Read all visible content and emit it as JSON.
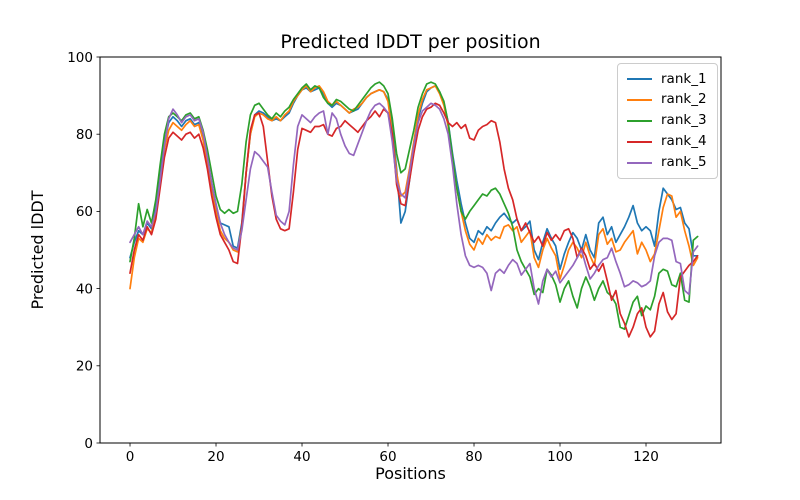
{
  "figure": {
    "background": "#ffffff",
    "axes_color": "#000000",
    "legend_border_color": "#cccccc"
  },
  "chart_data": {
    "type": "line",
    "title": "Predicted lDDT per position",
    "xlabel": "Positions",
    "ylabel": "Predicted lDDT",
    "xlim": [
      -6.98,
      137.44
    ],
    "ylim": [
      0,
      100
    ],
    "xticks": [
      0,
      20,
      40,
      60,
      80,
      100,
      120
    ],
    "yticks": [
      0,
      20,
      40,
      60,
      80,
      100
    ],
    "grid": false,
    "legend_position": "upper right",
    "x_start": 0,
    "x_step": 1,
    "series": [
      {
        "name": "rank_1",
        "color": "#1f77b4",
        "values": [
          48,
          52,
          55,
          54,
          57,
          55.5,
          61,
          70,
          78,
          83,
          84.5,
          83.5,
          82,
          83.5,
          84,
          82.5,
          83,
          79,
          73,
          66,
          61,
          57,
          56.5,
          56,
          51,
          50.5,
          57,
          70,
          80,
          85,
          86,
          85.5,
          84.5,
          83.5,
          84,
          83.5,
          84.5,
          85.5,
          88,
          90,
          91.5,
          92,
          91,
          91.5,
          92,
          90.5,
          88,
          87,
          88,
          87.5,
          86.5,
          85.5,
          86,
          86.5,
          88,
          89.5,
          90.5,
          91,
          91.5,
          91,
          89,
          82,
          71,
          57,
          60,
          68,
          77,
          84,
          88,
          91,
          92,
          92.5,
          91,
          88,
          83,
          75,
          68,
          62,
          57,
          53,
          52,
          55,
          54,
          56,
          55,
          57,
          58.5,
          59.5,
          58,
          57,
          58,
          55,
          56,
          57.5,
          50,
          47.5,
          52,
          55.5,
          53,
          51,
          45,
          49,
          52,
          54.5,
          53,
          50,
          54,
          50,
          48,
          57,
          58.5,
          54,
          56,
          52,
          54,
          56,
          58.5,
          61.5,
          57,
          55,
          56,
          55,
          51,
          60,
          66,
          64.5,
          63,
          60.5,
          61,
          57,
          55.5,
          48.5,
          48.5
        ]
      },
      {
        "name": "rank_2",
        "color": "#ff7f0e",
        "values": [
          40,
          48,
          53,
          52,
          55.5,
          54.5,
          59,
          68,
          76,
          81,
          83,
          82,
          81,
          82.5,
          83.5,
          82,
          82.5,
          78.5,
          72,
          65,
          60,
          55,
          53,
          52,
          50,
          49.5,
          56,
          70,
          80,
          84.5,
          85.5,
          85,
          84,
          83.5,
          84.5,
          83.5,
          85,
          86,
          88.5,
          90,
          91.5,
          92.5,
          91,
          92,
          92.5,
          91,
          88.5,
          87.5,
          88.5,
          87.5,
          86.5,
          85.5,
          86.5,
          87,
          88,
          89.5,
          90.5,
          91,
          91.5,
          91,
          88.5,
          80,
          70,
          64,
          65,
          71,
          78,
          85,
          89,
          91.5,
          92,
          92.5,
          90.5,
          87.5,
          82,
          74,
          66,
          60,
          55,
          51.5,
          50,
          53,
          51.5,
          54,
          52.5,
          53.5,
          53,
          56,
          56.5,
          55,
          56,
          52,
          53.5,
          55,
          48,
          45.5,
          50,
          53,
          50.5,
          48.5,
          42.5,
          46,
          50,
          52,
          50.5,
          48,
          52,
          48.5,
          46,
          54,
          55.5,
          51.5,
          53,
          49.5,
          50,
          52,
          53.5,
          55,
          49,
          52,
          50,
          47,
          49,
          55,
          61,
          64.5,
          64,
          58.5,
          60,
          55,
          51,
          46,
          48
        ]
      },
      {
        "name": "rank_3",
        "color": "#2ca02c",
        "values": [
          47,
          53,
          62,
          56,
          60.5,
          57,
          63,
          72,
          80,
          84.5,
          85.5,
          84.5,
          83.5,
          85,
          85.5,
          84,
          84.5,
          81,
          76,
          70,
          64,
          60.5,
          59.5,
          60.5,
          59.5,
          60,
          67,
          78,
          85,
          87.5,
          88,
          86.5,
          85,
          84,
          85.5,
          84.5,
          86,
          87,
          89,
          90.5,
          92,
          93,
          91.5,
          92.5,
          92,
          89.5,
          88,
          87.5,
          89,
          88.5,
          87.5,
          86.5,
          86,
          87.5,
          89,
          90.5,
          92,
          93,
          93.5,
          92.5,
          90.5,
          84,
          75,
          70,
          71,
          76,
          81,
          87,
          90.5,
          93,
          93.5,
          93,
          91,
          88.5,
          83,
          74,
          66,
          60,
          58,
          60,
          61.5,
          63,
          64.5,
          64,
          65.5,
          66,
          64.5,
          62,
          59.5,
          56,
          50,
          47,
          45,
          43,
          38.5,
          40,
          39,
          45,
          43.5,
          41,
          36.5,
          40,
          42,
          38,
          35,
          40,
          43,
          40.5,
          37,
          40,
          42,
          39,
          38,
          36,
          30,
          29.5,
          33,
          36.5,
          38,
          33,
          35.5,
          34.5,
          38,
          44,
          45,
          44.5,
          41,
          40.5,
          44,
          37,
          36.5,
          52.5,
          53.5
        ]
      },
      {
        "name": "rank_4",
        "color": "#d62728",
        "values": [
          44,
          50,
          54,
          52.5,
          56,
          54,
          58,
          66,
          74,
          79,
          80.5,
          79.5,
          78.5,
          80,
          80.5,
          79,
          80,
          76.5,
          71,
          64,
          58.5,
          54,
          52,
          50,
          47,
          46.5,
          56,
          70,
          81,
          85,
          85.5,
          82,
          73,
          64,
          58,
          55.5,
          55,
          55.5,
          65,
          76,
          81.5,
          81,
          80.5,
          82,
          82,
          82.5,
          80,
          79.5,
          81.5,
          82,
          83.5,
          82.5,
          81.5,
          80.5,
          82,
          83.5,
          84.5,
          86,
          84.5,
          86.5,
          85.5,
          80,
          67,
          62,
          61.5,
          68,
          75,
          81,
          84.5,
          86.5,
          87,
          88,
          87.5,
          85.5,
          83,
          82,
          83,
          81.5,
          82.5,
          79,
          78.5,
          81,
          82,
          82.5,
          83.5,
          83,
          78,
          71,
          66,
          63,
          58,
          55,
          57,
          54.5,
          52,
          53.5,
          51,
          54.5,
          52.5,
          54,
          52.5,
          55,
          55.5,
          53,
          48,
          50.5,
          48.5,
          45,
          46.5,
          44.5,
          46.5,
          42,
          37,
          39.5,
          33.5,
          31,
          27.5,
          30,
          33.5,
          35,
          30,
          27.5,
          29,
          36,
          39,
          34,
          32,
          33.5,
          43,
          44.5,
          46,
          47,
          48.5
        ]
      },
      {
        "name": "rank_5",
        "color": "#9467bd",
        "values": [
          52,
          54,
          56,
          54,
          57.5,
          56,
          60,
          68,
          77,
          84,
          86.5,
          85,
          83,
          84.5,
          85,
          83.5,
          84,
          80.5,
          74,
          67.5,
          62,
          57,
          54,
          52,
          50.5,
          50,
          55,
          63,
          71,
          75.5,
          74.5,
          73,
          71.5,
          65,
          59,
          57.5,
          56.5,
          60,
          72,
          82,
          85,
          84,
          83,
          84.5,
          85.5,
          86,
          80,
          85.5,
          84,
          80,
          77,
          75,
          74.5,
          77.5,
          80.5,
          83.5,
          86,
          87.5,
          88,
          87,
          85.5,
          78,
          68,
          64.5,
          63.5,
          70,
          77,
          83,
          86,
          87,
          88,
          87.5,
          86.5,
          84,
          80,
          72,
          62,
          54,
          48.5,
          46,
          45.5,
          46,
          45.5,
          44,
          39.5,
          44,
          45,
          44,
          46,
          47.5,
          46.5,
          43.5,
          45,
          46.5,
          40,
          36,
          42,
          45,
          43,
          44.5,
          41.5,
          43,
          44.5,
          46,
          48,
          50,
          46,
          42.5,
          44,
          46,
          47.5,
          48,
          50.5,
          47,
          44,
          40.5,
          41,
          42,
          41.5,
          40.5,
          41,
          42,
          48.5,
          52,
          53,
          53,
          52.5,
          47,
          46.5,
          39.5,
          38.5,
          49.5,
          51
        ]
      }
    ]
  }
}
